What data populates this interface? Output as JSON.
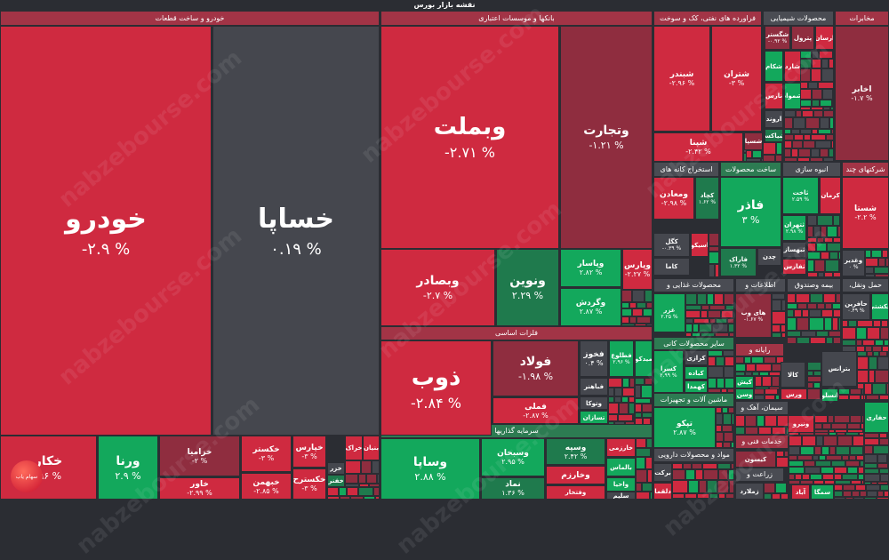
{
  "title": "نقشه بازار بورس",
  "watermark": "nabzebourse.com",
  "logo_text": "سهام یاب",
  "palette": {
    "red": "#cf2a40",
    "darkred": "#8f2d3f",
    "gray": "#45474e",
    "green": "#13a85c",
    "darkgreen": "#1f7a4d",
    "hdr_red": "#a23446",
    "hdr_gray": "#4a4c53",
    "hdr_green": "#2d7b52"
  },
  "sectors": [
    {
      "label": "خودرو و ساخت قطعات",
      "color": "hdr_red"
    },
    {
      "label": "بانکها و موسسات اعتباری",
      "color": "hdr_red"
    },
    {
      "label": "فراورده های نفتی، کک و سوخت",
      "color": "hdr_red"
    },
    {
      "label": "محصولات شیمیایی",
      "color": "hdr_gray"
    },
    {
      "label": "مخابرات",
      "color": "hdr_red"
    },
    {
      "label": "فلزات اساسی",
      "color": "hdr_red"
    },
    {
      "label": "سرمایه گذاریها",
      "color": "hdr_green"
    },
    {
      "label": "استخراج کانه های",
      "color": "hdr_gray"
    },
    {
      "label": "ساخت محصولات",
      "color": "hdr_green"
    },
    {
      "label": "انبوه سازی",
      "color": "hdr_gray"
    },
    {
      "label": "شرکتهای چند",
      "color": "hdr_red"
    },
    {
      "label": "محصولات غذایی و",
      "color": "hdr_gray"
    },
    {
      "label": "اطلاعات و",
      "color": "hdr_gray"
    },
    {
      "label": "بیمه وصندوق",
      "color": "hdr_gray"
    },
    {
      "label": "حمل ونقل،",
      "color": "hdr_gray"
    },
    {
      "label": "سایر محصولات کانی",
      "color": "hdr_green"
    },
    {
      "label": "ماشین آلات و تجهیزات",
      "color": "hdr_green"
    },
    {
      "label": "مواد و محصولات دارویی",
      "color": "hdr_gray"
    },
    {
      "label": "رایانه و",
      "color": "hdr_red"
    },
    {
      "label": "سیمان، آهک و",
      "color": "hdr_gray"
    },
    {
      "label": "خدمات فنی و",
      "color": "hdr_red"
    },
    {
      "label": "زراعت و",
      "color": "hdr_gray"
    }
  ],
  "tiles": [
    {
      "name": "خودرو",
      "pct": "-۲.۹ %",
      "color": "red"
    },
    {
      "name": "خساپا",
      "pct": "۰.۱۹ %",
      "color": "gray"
    },
    {
      "name": "خکار",
      "pct": ".۹۶ %",
      "color": "red"
    },
    {
      "name": "ورنا",
      "pct": "۲.۹ %",
      "color": "green"
    },
    {
      "name": "خزامیا",
      "pct": "-۲ %",
      "color": "darkred"
    },
    {
      "name": "خاور",
      "pct": "-۲.۹۹ %",
      "color": "red"
    },
    {
      "name": "خکستر",
      "pct": "-۳ %",
      "color": "red"
    },
    {
      "name": "خبهمن",
      "pct": "-۲.۸۵ %",
      "color": "red"
    },
    {
      "name": "خپارس",
      "pct": "-۳ %",
      "color": "red"
    },
    {
      "name": "خکسترح",
      "pct": "-۳ %",
      "color": "red"
    },
    {
      "name": "وبملت",
      "pct": "-۲.۷۱ %",
      "color": "red"
    },
    {
      "name": "وتجارت",
      "pct": "-۱.۲۱ %",
      "color": "darkred"
    },
    {
      "name": "وبصادر",
      "pct": "-۲.۷ %",
      "color": "red"
    },
    {
      "name": "ونوین",
      "pct": "۲.۲۹ %",
      "color": "darkgreen"
    },
    {
      "name": "وپاسار",
      "pct": "۲.۸۲ %",
      "color": "green"
    },
    {
      "name": "وگردش",
      "pct": "۲.۸۷ %",
      "color": "green"
    },
    {
      "name": "وپارس",
      "pct": "-۲.۲۷ %",
      "color": "red"
    },
    {
      "name": "ذوب",
      "pct": "-۲.۸۴ %",
      "color": "red"
    },
    {
      "name": "فولاد",
      "pct": "-۱.۹۸ %",
      "color": "darkred"
    },
    {
      "name": "فملی",
      "pct": "-۲.۸۷ %",
      "color": "red"
    },
    {
      "name": "فخوز",
      "pct": "۰.۴ %",
      "color": "gray"
    },
    {
      "name": "فطلوع",
      "pct": "۲.۹۶ %",
      "color": "green"
    },
    {
      "name": "میدکو",
      "pct": "",
      "color": "green"
    },
    {
      "name": "فباهنر",
      "pct": "",
      "color": "gray"
    },
    {
      "name": "وتوکا",
      "pct": "",
      "color": "gray"
    },
    {
      "name": "تسازان",
      "pct": "",
      "color": "green"
    },
    {
      "name": "وساپا",
      "pct": "۲.۸۸ %",
      "color": "green"
    },
    {
      "name": "وسبحان",
      "pct": "۲.۹۵ %",
      "color": "green"
    },
    {
      "name": "نماد",
      "pct": "۱.۳۶ %",
      "color": "darkgreen"
    },
    {
      "name": "وسپه",
      "pct": "۲.۴۲ %",
      "color": "darkgreen"
    },
    {
      "name": "وخارزم",
      "pct": "",
      "color": "red"
    },
    {
      "name": "وفتخار",
      "pct": "",
      "color": "red"
    },
    {
      "name": "خارزمی",
      "pct": "",
      "color": "red"
    },
    {
      "name": "بالماس",
      "pct": "",
      "color": "green"
    },
    {
      "name": "واحیا",
      "pct": "",
      "color": "green"
    },
    {
      "name": "سلیم",
      "pct": "",
      "color": "gray"
    },
    {
      "name": "شبندر",
      "pct": "-۲.۹۶ %",
      "color": "red"
    },
    {
      "name": "شتران",
      "pct": "-۳ %",
      "color": "red"
    },
    {
      "name": "شپنا",
      "pct": "-۲.۴۲ %",
      "color": "red"
    },
    {
      "name": "شسپا",
      "pct": "",
      "color": "darkred"
    },
    {
      "name": "شگستر",
      "pct": "-۰.۹۲ %",
      "color": "darkred"
    },
    {
      "name": "پترول",
      "pct": "",
      "color": "darkred"
    },
    {
      "name": "ارسان",
      "pct": "",
      "color": "red"
    },
    {
      "name": "شکام",
      "pct": "",
      "color": "green"
    },
    {
      "name": "شارد",
      "pct": "",
      "color": "red"
    },
    {
      "name": "نارس",
      "pct": "",
      "color": "red"
    },
    {
      "name": "شمواد",
      "pct": "",
      "color": "green"
    },
    {
      "name": "اروند",
      "pct": "",
      "color": "gray"
    },
    {
      "name": "شیاکسا",
      "pct": "",
      "color": "darkgreen"
    },
    {
      "name": "اخابر",
      "pct": "-۱.۷ %",
      "color": "darkred"
    },
    {
      "name": "ومعادن",
      "pct": "-۲.۹۸ %",
      "color": "red"
    },
    {
      "name": "کچاد",
      "pct": "۱.۶۲ %",
      "color": "darkgreen"
    },
    {
      "name": "کگل",
      "pct": "-۰.۳۹ %",
      "color": "gray"
    },
    {
      "name": "اسیکو",
      "pct": "",
      "color": "red"
    },
    {
      "name": "کاما",
      "pct": "",
      "color": "gray"
    },
    {
      "name": "فاذر",
      "pct": "۳ %",
      "color": "green"
    },
    {
      "name": "فاراک",
      "pct": "۱.۳۲ %",
      "color": "darkgreen"
    },
    {
      "name": "چدن",
      "pct": "",
      "color": "gray"
    },
    {
      "name": "ثاخت",
      "pct": "۲.۵۹ %",
      "color": "green"
    },
    {
      "name": "کرمان",
      "pct": "",
      "color": "red"
    },
    {
      "name": "ثتهران",
      "pct": "۲.۹۸ %",
      "color": "green"
    },
    {
      "name": "ثبهساز",
      "pct": "",
      "color": "gray"
    },
    {
      "name": "ثفارس",
      "pct": "",
      "color": "red"
    },
    {
      "name": "شستا",
      "pct": "-۲.۲ %",
      "color": "red"
    },
    {
      "name": "وغدیر",
      "pct": "۰ %",
      "color": "gray"
    },
    {
      "name": "غزر",
      "pct": "۲.۲۵ %",
      "color": "green"
    },
    {
      "name": "های وب",
      "pct": "-۱.۶۷ %",
      "color": "darkred"
    },
    {
      "name": "حافرین",
      "pct": "۰.۴۹ %",
      "color": "gray"
    },
    {
      "name": "حکشتی",
      "pct": "",
      "color": "green"
    },
    {
      "name": "کسرا",
      "pct": "۲.۹۹ %",
      "color": "green"
    },
    {
      "name": "کرازی",
      "pct": "",
      "color": "gray"
    },
    {
      "name": "کباده",
      "pct": "",
      "color": "green"
    },
    {
      "name": "کهمدا",
      "pct": "",
      "color": "green"
    },
    {
      "name": "تپکو",
      "pct": "۲.۸۷ %",
      "color": "green"
    },
    {
      "name": "برکت",
      "pct": "",
      "color": "gray"
    },
    {
      "name": "دلقما",
      "pct": "",
      "color": "red"
    },
    {
      "name": "کیش",
      "pct": "",
      "color": "green"
    },
    {
      "name": "وسن",
      "pct": "",
      "color": "green"
    },
    {
      "name": "کیسون",
      "pct": "",
      "color": "darkred"
    },
    {
      "name": "زملارد",
      "pct": "",
      "color": "gray"
    },
    {
      "name": "کالا",
      "pct": "",
      "color": "gray"
    },
    {
      "name": "ورس",
      "pct": "",
      "color": "red"
    },
    {
      "name": "بترانس",
      "pct": "",
      "color": "gray"
    },
    {
      "name": "انسلو",
      "pct": "",
      "color": "green"
    },
    {
      "name": "ونیرو",
      "pct": "",
      "color": "red"
    },
    {
      "name": "حفاری",
      "pct": "",
      "color": "green"
    },
    {
      "name": "سمگا",
      "pct": "",
      "color": "green"
    },
    {
      "name": "آباد",
      "pct": "",
      "color": "red"
    },
    {
      "name": "خزر",
      "pct": "",
      "color": "gray"
    },
    {
      "name": "خفنر",
      "pct": "",
      "color": "darkgreen"
    },
    {
      "name": "خراک",
      "pct": "",
      "color": "red"
    },
    {
      "name": "بنیان",
      "pct": "",
      "color": "red"
    }
  ]
}
